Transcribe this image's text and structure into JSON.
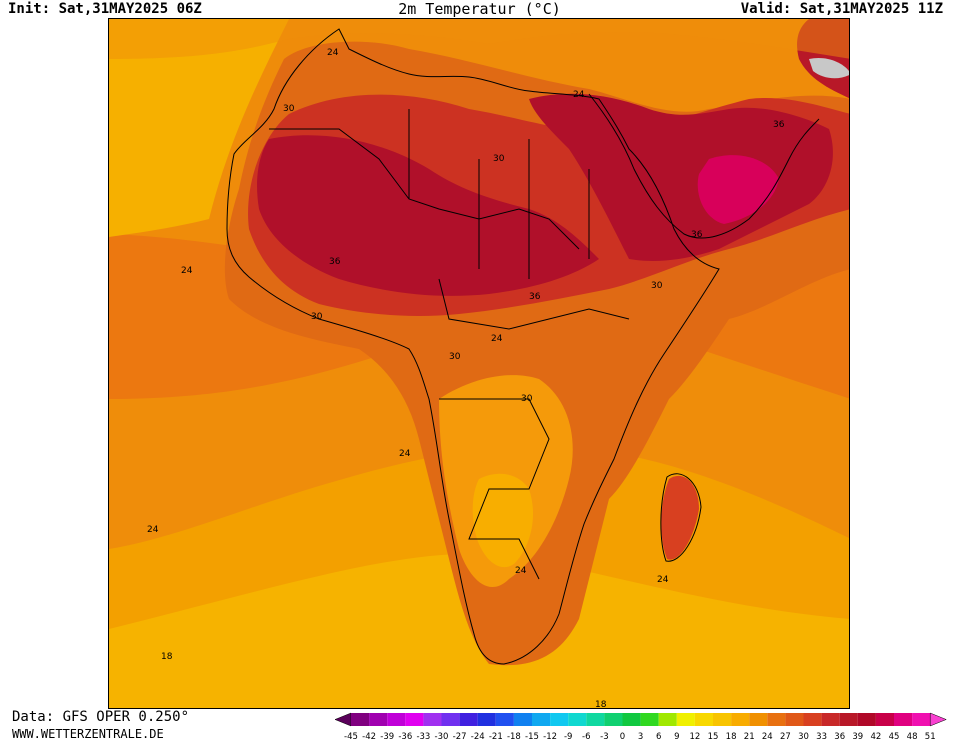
{
  "header": {
    "init": "Init: Sat,31MAY2025 06Z",
    "title": "2m Temperatur (°C)",
    "valid": "Valid: Sat,31MAY2025 11Z"
  },
  "footer": {
    "data_source": "Data: GFS OPER 0.250°",
    "website": "WWW.WETTERZENTRALE.DE"
  },
  "map": {
    "contour_labels": [
      "24",
      "30",
      "24",
      "30",
      "36",
      "36",
      "24",
      "36",
      "30",
      "36",
      "30",
      "30",
      "24",
      "30",
      "24",
      "24",
      "24",
      "24",
      "18",
      "18"
    ]
  },
  "legend": {
    "ticks": [
      "-45",
      "-42",
      "-39",
      "-36",
      "-33",
      "-30",
      "-27",
      "-24",
      "-21",
      "-18",
      "-15",
      "-12",
      "-9",
      "-6",
      "-3",
      "0",
      "3",
      "6",
      "9",
      "12",
      "15",
      "18",
      "21",
      "24",
      "27",
      "30",
      "33",
      "36",
      "39",
      "42",
      "45",
      "48",
      "51"
    ],
    "colors": [
      "#5a005a",
      "#800080",
      "#a000b0",
      "#c000d8",
      "#e000f0",
      "#a030f0",
      "#7030f0",
      "#4020e0",
      "#2030e0",
      "#2050f0",
      "#1080f0",
      "#10a8f0",
      "#10c8f0",
      "#10d8d0",
      "#10d8a0",
      "#10d070",
      "#10c840",
      "#30d820",
      "#a0e800",
      "#f0f000",
      "#f8d800",
      "#f8c400",
      "#f8ac00",
      "#f09000",
      "#e87010",
      "#e05818",
      "#d84020",
      "#c82828",
      "#b81828",
      "#b00828",
      "#c80048",
      "#e00080",
      "#f010b0",
      "#f840d0"
    ]
  }
}
